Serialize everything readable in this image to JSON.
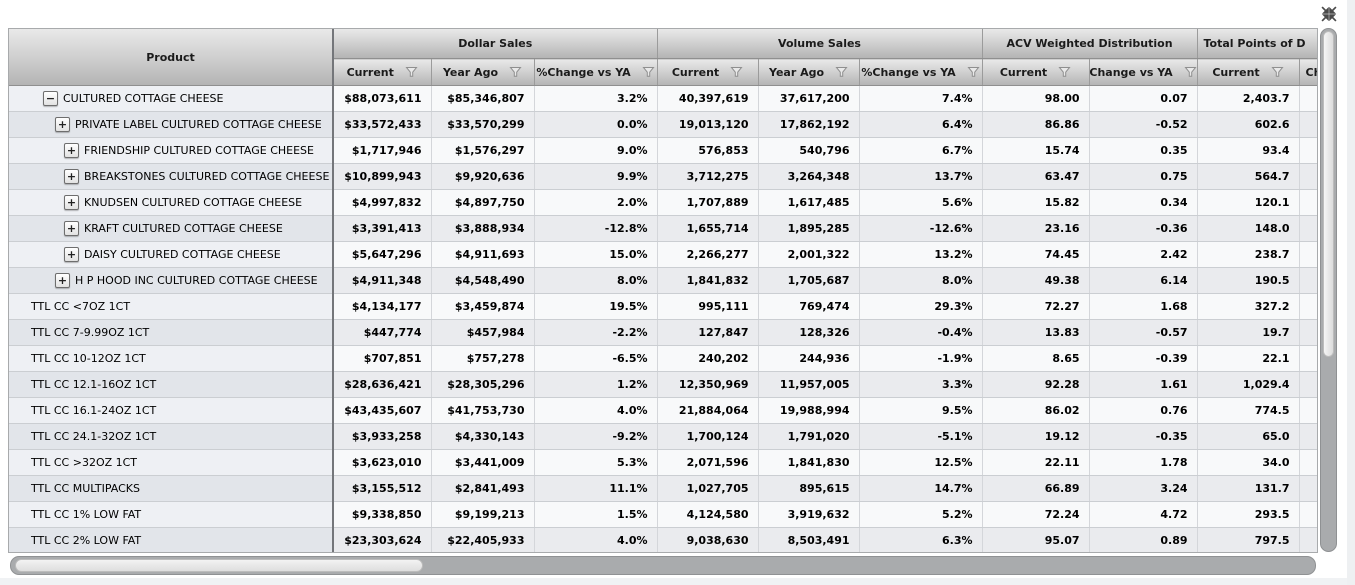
{
  "widget": {
    "fullscreen_icon": "collapse-arrows",
    "colors": {
      "header_gradient_top": "#e9e9e9",
      "header_gradient_bottom": "#b4b4b4",
      "row_odd": "#f8f9fa",
      "row_even": "#eaebee",
      "frozen_divider": "#74767a"
    }
  },
  "table": {
    "product_header": "Product",
    "groups": [
      {
        "label": "Dollar Sales",
        "columns": [
          "Current",
          "Year Ago",
          "%Change vs YA"
        ]
      },
      {
        "label": "Volume Sales",
        "columns": [
          "Current",
          "Year Ago",
          "%Change vs YA"
        ]
      },
      {
        "label": "ACV Weighted Distribution",
        "columns": [
          "Current",
          "Change vs YA"
        ]
      },
      {
        "label": "Total Points of D",
        "columns": [
          "Current",
          "Ch"
        ]
      }
    ],
    "value_columns": [
      "dollar_current",
      "dollar_year_ago",
      "dollar_pct_change",
      "volume_current",
      "volume_year_ago",
      "volume_pct_change",
      "acv_current",
      "acv_change_vs_ya",
      "tpd_current"
    ],
    "rows": [
      {
        "product": "CULTURED COTTAGE CHEESE",
        "expander": "minus",
        "indent": 0,
        "values": [
          "$88,073,611",
          "$85,346,807",
          "3.2%",
          "40,397,619",
          "37,617,200",
          "7.4%",
          "98.00",
          "0.07",
          "2,403.7"
        ]
      },
      {
        "product": "PRIVATE LABEL CULTURED COTTAGE CHEESE",
        "expander": "plus",
        "indent": 1,
        "values": [
          "$33,572,433",
          "$33,570,299",
          "0.0%",
          "19,013,120",
          "17,862,192",
          "6.4%",
          "86.86",
          "-0.52",
          "602.6"
        ]
      },
      {
        "product": "FRIENDSHIP CULTURED COTTAGE CHEESE",
        "expander": "plus",
        "indent": 2,
        "values": [
          "$1,717,946",
          "$1,576,297",
          "9.0%",
          "576,853",
          "540,796",
          "6.7%",
          "15.74",
          "0.35",
          "93.4"
        ]
      },
      {
        "product": "BREAKSTONES CULTURED COTTAGE CHEESE",
        "expander": "plus",
        "indent": 2,
        "values": [
          "$10,899,943",
          "$9,920,636",
          "9.9%",
          "3,712,275",
          "3,264,348",
          "13.7%",
          "63.47",
          "0.75",
          "564.7"
        ]
      },
      {
        "product": "KNUDSEN CULTURED COTTAGE CHEESE",
        "expander": "plus",
        "indent": 2,
        "values": [
          "$4,997,832",
          "$4,897,750",
          "2.0%",
          "1,707,889",
          "1,617,485",
          "5.6%",
          "15.82",
          "0.34",
          "120.1"
        ]
      },
      {
        "product": "KRAFT CULTURED COTTAGE CHEESE",
        "expander": "plus",
        "indent": 2,
        "values": [
          "$3,391,413",
          "$3,888,934",
          "-12.8%",
          "1,655,714",
          "1,895,285",
          "-12.6%",
          "23.16",
          "-0.36",
          "148.0"
        ]
      },
      {
        "product": "DAISY CULTURED COTTAGE CHEESE",
        "expander": "plus",
        "indent": 2,
        "values": [
          "$5,647,296",
          "$4,911,693",
          "15.0%",
          "2,266,277",
          "2,001,322",
          "13.2%",
          "74.45",
          "2.42",
          "238.7"
        ]
      },
      {
        "product": "H P HOOD INC CULTURED COTTAGE CHEESE",
        "expander": "plus",
        "indent": 1,
        "values": [
          "$4,911,348",
          "$4,548,490",
          "8.0%",
          "1,841,832",
          "1,705,687",
          "8.0%",
          "49.38",
          "6.14",
          "190.5"
        ]
      },
      {
        "product": "TTL CC <7OZ 1CT",
        "expander": null,
        "indent": null,
        "values": [
          "$4,134,177",
          "$3,459,874",
          "19.5%",
          "995,111",
          "769,474",
          "29.3%",
          "72.27",
          "1.68",
          "327.2"
        ]
      },
      {
        "product": "TTL CC 7-9.99OZ 1CT",
        "expander": null,
        "indent": null,
        "values": [
          "$447,774",
          "$457,984",
          "-2.2%",
          "127,847",
          "128,326",
          "-0.4%",
          "13.83",
          "-0.57",
          "19.7"
        ]
      },
      {
        "product": "TTL CC 10-12OZ 1CT",
        "expander": null,
        "indent": null,
        "values": [
          "$707,851",
          "$757,278",
          "-6.5%",
          "240,202",
          "244,936",
          "-1.9%",
          "8.65",
          "-0.39",
          "22.1"
        ]
      },
      {
        "product": "TTL CC 12.1-16OZ 1CT",
        "expander": null,
        "indent": null,
        "values": [
          "$28,636,421",
          "$28,305,296",
          "1.2%",
          "12,350,969",
          "11,957,005",
          "3.3%",
          "92.28",
          "1.61",
          "1,029.4"
        ]
      },
      {
        "product": "TTL CC 16.1-24OZ 1CT",
        "expander": null,
        "indent": null,
        "values": [
          "$43,435,607",
          "$41,753,730",
          "4.0%",
          "21,884,064",
          "19,988,994",
          "9.5%",
          "86.02",
          "0.76",
          "774.5"
        ]
      },
      {
        "product": "TTL CC 24.1-32OZ 1CT",
        "expander": null,
        "indent": null,
        "values": [
          "$3,933,258",
          "$4,330,143",
          "-9.2%",
          "1,700,124",
          "1,791,020",
          "-5.1%",
          "19.12",
          "-0.35",
          "65.0"
        ]
      },
      {
        "product": "TTL CC >32OZ 1CT",
        "expander": null,
        "indent": null,
        "values": [
          "$3,623,010",
          "$3,441,009",
          "5.3%",
          "2,071,596",
          "1,841,830",
          "12.5%",
          "22.11",
          "1.78",
          "34.0"
        ]
      },
      {
        "product": "TTL CC MULTIPACKS",
        "expander": null,
        "indent": null,
        "values": [
          "$3,155,512",
          "$2,841,493",
          "11.1%",
          "1,027,705",
          "895,615",
          "14.7%",
          "66.89",
          "3.24",
          "131.7"
        ]
      },
      {
        "product": "TTL CC 1% LOW FAT",
        "expander": null,
        "indent": null,
        "values": [
          "$9,338,850",
          "$9,199,213",
          "1.5%",
          "4,124,580",
          "3,919,632",
          "5.2%",
          "72.24",
          "4.72",
          "293.5"
        ]
      },
      {
        "product": "TTL CC 2% LOW FAT",
        "expander": null,
        "indent": null,
        "values": [
          "$23,303,624",
          "$22,405,933",
          "4.0%",
          "9,038,630",
          "8,503,491",
          "6.3%",
          "95.07",
          "0.89",
          "797.5"
        ]
      }
    ]
  }
}
